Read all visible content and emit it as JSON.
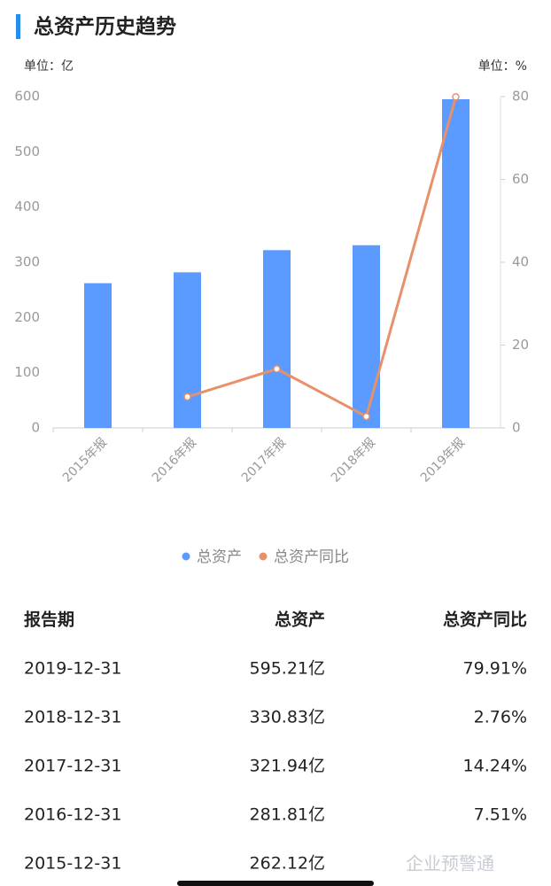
{
  "chart_data": {
    "type": "bar",
    "title": "总资产历史趋势",
    "y_unit": "单位：亿",
    "y2_unit": "单位：%",
    "categories": [
      "2015年报",
      "2016年报",
      "2017年报",
      "2018年报",
      "2019年报"
    ],
    "series": [
      {
        "name": "总资产",
        "type": "bar",
        "color": "#5b9bff",
        "values": [
          262.12,
          281.81,
          321.94,
          330.83,
          595.21
        ]
      },
      {
        "name": "总资产同比",
        "type": "line",
        "axis": "y2",
        "color": "#e8906a",
        "values": [
          null,
          7.51,
          14.24,
          2.76,
          79.91
        ]
      }
    ],
    "ylim": [
      0,
      600
    ],
    "yticks": [
      0,
      100,
      200,
      300,
      400,
      500,
      600
    ],
    "y2lim": [
      0,
      80
    ],
    "y2ticks": [
      0,
      20,
      40,
      60,
      80
    ],
    "grid": false
  },
  "table": {
    "header": [
      "报告期",
      "总资产",
      "总资产同比"
    ],
    "rows": [
      [
        "2019-12-31",
        "595.21亿",
        "79.91%"
      ],
      [
        "2018-12-31",
        "330.83亿",
        "2.76%"
      ],
      [
        "2017-12-31",
        "321.94亿",
        "14.24%"
      ],
      [
        "2016-12-31",
        "281.81亿",
        "7.51%"
      ],
      [
        "2015-12-31",
        "262.12亿",
        "-"
      ]
    ]
  },
  "watermark": "企业预警通"
}
